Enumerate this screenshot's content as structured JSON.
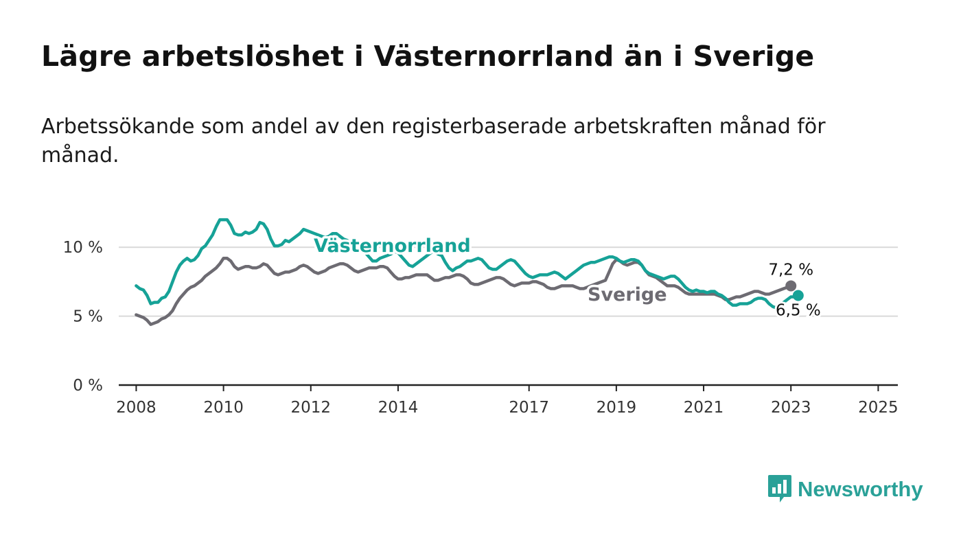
{
  "header": {
    "title": "Lägre arbetslöshet i Västernorrland än i Sverige",
    "subtitle": "Arbetssökande som andel av den registerbaserade arbetskraften månad för månad."
  },
  "brand": {
    "name": "Newsworthy",
    "icon": "bar-chart-speech-bubble-icon"
  },
  "colors": {
    "teal": "#16a297",
    "gray": "#6d6b72",
    "grid": "#d9d9d9",
    "axis": "#222222"
  },
  "chart_data": {
    "type": "line",
    "x_start": 2008.0,
    "x_step_months": 1,
    "ylim": [
      0,
      13
    ],
    "xlim": [
      2007.6,
      2025.45
    ],
    "yticks": [
      0,
      5,
      10
    ],
    "ytick_labels": [
      "0 %",
      "5 %",
      "10 %"
    ],
    "xticks": [
      2008,
      2010,
      2012,
      2014,
      2017,
      2019,
      2021,
      2023,
      2025
    ],
    "xtick_labels": [
      "2008",
      "2010",
      "2012",
      "2014",
      "2017",
      "2019",
      "2021",
      "2023",
      "2025"
    ],
    "grid": true,
    "series": [
      {
        "name": "Västernorrland",
        "color": "#16a297",
        "end_label": "6,5 %",
        "values": [
          7.2,
          7.0,
          6.9,
          6.5,
          5.9,
          6.0,
          6.0,
          6.3,
          6.4,
          6.8,
          7.5,
          8.2,
          8.7,
          9.0,
          9.2,
          9.0,
          9.1,
          9.4,
          9.9,
          10.1,
          10.5,
          10.9,
          11.5,
          12.0,
          12.0,
          12.0,
          11.6,
          11.0,
          10.9,
          10.9,
          11.1,
          11.0,
          11.1,
          11.3,
          11.8,
          11.7,
          11.3,
          10.6,
          10.1,
          10.1,
          10.2,
          10.5,
          10.4,
          10.6,
          10.8,
          11.0,
          11.3,
          11.2,
          11.1,
          11.0,
          10.9,
          10.8,
          10.7,
          10.8,
          11.0,
          11.0,
          10.8,
          10.6,
          10.5,
          10.3,
          10.2,
          10.0,
          9.8,
          9.6,
          9.3,
          9.0,
          9.0,
          9.2,
          9.3,
          9.4,
          9.5,
          9.7,
          9.6,
          9.3,
          9.0,
          8.7,
          8.6,
          8.8,
          9.0,
          9.2,
          9.4,
          9.6,
          9.7,
          9.5,
          9.4,
          8.9,
          8.5,
          8.3,
          8.5,
          8.6,
          8.8,
          9.0,
          9.0,
          9.1,
          9.2,
          9.1,
          8.8,
          8.5,
          8.4,
          8.4,
          8.6,
          8.8,
          9.0,
          9.1,
          9.0,
          8.7,
          8.4,
          8.1,
          7.9,
          7.8,
          7.9,
          8.0,
          8.0,
          8.0,
          8.1,
          8.2,
          8.1,
          7.9,
          7.7,
          7.9,
          8.1,
          8.3,
          8.5,
          8.7,
          8.8,
          8.9,
          8.9,
          9.0,
          9.1,
          9.2,
          9.3,
          9.3,
          9.2,
          9.0,
          8.9,
          9.0,
          9.1,
          9.1,
          9.0,
          8.7,
          8.3,
          8.1,
          8.0,
          7.9,
          7.8,
          7.7,
          7.8,
          7.9,
          7.9,
          7.7,
          7.4,
          7.1,
          6.9,
          6.8,
          6.9,
          6.8,
          6.8,
          6.7,
          6.8,
          6.8,
          6.6,
          6.5,
          6.3,
          6.0,
          5.8,
          5.8,
          5.9,
          5.9,
          5.9,
          6.0,
          6.2,
          6.3,
          6.3,
          6.2,
          5.9,
          5.7,
          5.6,
          5.8,
          6.0,
          6.2,
          6.4,
          6.4,
          6.5
        ]
      },
      {
        "name": "Sverige",
        "color": "#6d6b72",
        "end_label": "7,2 %",
        "values": [
          5.1,
          5.0,
          4.9,
          4.7,
          4.4,
          4.5,
          4.6,
          4.8,
          4.9,
          5.1,
          5.4,
          5.9,
          6.3,
          6.6,
          6.9,
          7.1,
          7.2,
          7.4,
          7.6,
          7.9,
          8.1,
          8.3,
          8.5,
          8.8,
          9.2,
          9.2,
          9.0,
          8.6,
          8.4,
          8.5,
          8.6,
          8.6,
          8.5,
          8.5,
          8.6,
          8.8,
          8.7,
          8.4,
          8.1,
          8.0,
          8.1,
          8.2,
          8.2,
          8.3,
          8.4,
          8.6,
          8.7,
          8.6,
          8.4,
          8.2,
          8.1,
          8.2,
          8.3,
          8.5,
          8.6,
          8.7,
          8.8,
          8.8,
          8.7,
          8.5,
          8.3,
          8.2,
          8.3,
          8.4,
          8.5,
          8.5,
          8.5,
          8.6,
          8.6,
          8.5,
          8.2,
          7.9,
          7.7,
          7.7,
          7.8,
          7.8,
          7.9,
          8.0,
          8.0,
          8.0,
          8.0,
          7.8,
          7.6,
          7.6,
          7.7,
          7.8,
          7.8,
          7.9,
          8.0,
          8.0,
          7.9,
          7.7,
          7.4,
          7.3,
          7.3,
          7.4,
          7.5,
          7.6,
          7.7,
          7.8,
          7.8,
          7.7,
          7.5,
          7.3,
          7.2,
          7.3,
          7.4,
          7.4,
          7.4,
          7.5,
          7.5,
          7.4,
          7.3,
          7.1,
          7.0,
          7.0,
          7.1,
          7.2,
          7.2,
          7.2,
          7.2,
          7.1,
          7.0,
          7.0,
          7.1,
          7.2,
          7.3,
          7.4,
          7.5,
          7.6,
          8.2,
          8.8,
          9.1,
          9.0,
          8.8,
          8.7,
          8.8,
          8.9,
          8.9,
          8.7,
          8.3,
          8.0,
          7.9,
          7.8,
          7.6,
          7.4,
          7.2,
          7.2,
          7.2,
          7.1,
          6.9,
          6.7,
          6.6,
          6.6,
          6.6,
          6.6,
          6.6,
          6.6,
          6.6,
          6.6,
          6.5,
          6.4,
          6.2,
          6.2,
          6.3,
          6.4,
          6.4,
          6.5,
          6.6,
          6.7,
          6.8,
          6.8,
          6.7,
          6.6,
          6.6,
          6.7,
          6.8,
          6.9,
          7.0,
          7.1,
          7.2
        ]
      }
    ]
  }
}
